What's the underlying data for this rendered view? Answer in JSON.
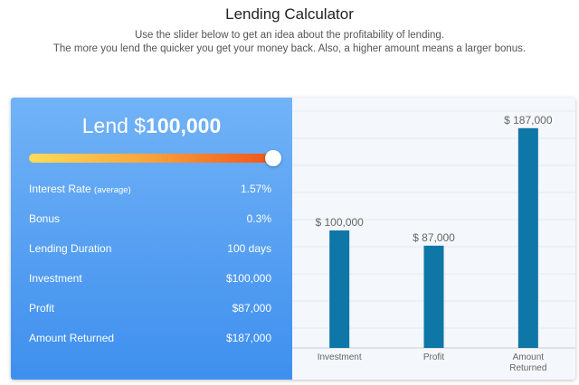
{
  "header": {
    "title": "Lending Calculator",
    "lines": [
      "Use the slider below to get an idea about the profitability of lending.",
      "The more you lend the quicker you get your money back. Also, a higher amount means a larger bonus."
    ]
  },
  "calculator": {
    "lend_prefix": "Lend $",
    "lend_amount": "100,000",
    "rows": [
      {
        "label": "Interest Rate",
        "note": "(average)",
        "value": "1.57%"
      },
      {
        "label": "Bonus",
        "value": "0.3%"
      },
      {
        "label": "Lending Duration",
        "value": "100 days"
      },
      {
        "label": "Investment",
        "value": "$100,000"
      },
      {
        "label": "Profit",
        "value": "$87,000"
      },
      {
        "label": "Amount Returned",
        "value": "$187,000"
      }
    ]
  },
  "chart_data": {
    "type": "bar",
    "categories": [
      "Investment",
      "Profit",
      "Amount Returned"
    ],
    "values": [
      100000,
      87000,
      187000
    ],
    "value_labels": [
      "$ 100,000",
      "$ 87,000",
      "$ 187,000"
    ],
    "color": "#0f77a8",
    "ylim": [
      0,
      213000
    ]
  }
}
